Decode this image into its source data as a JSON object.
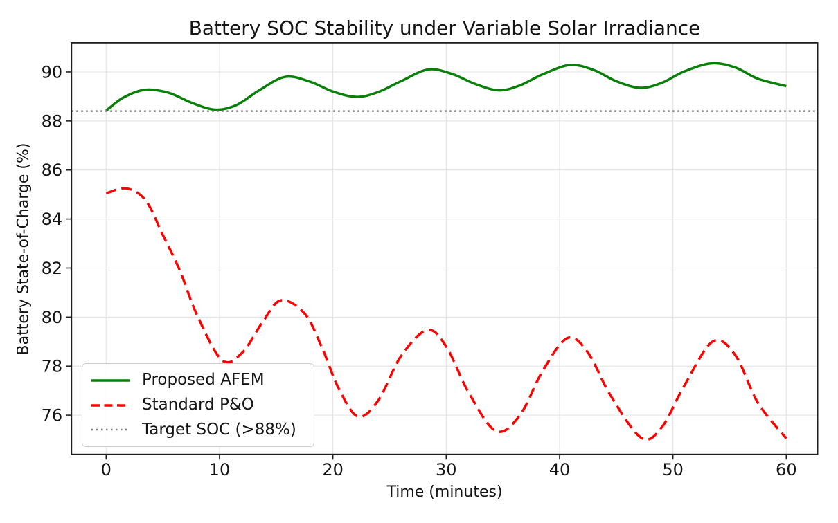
{
  "chart_data": {
    "type": "line",
    "title": "Battery SOC Stability under Variable Solar Irradiance",
    "xlabel": "Time (minutes)",
    "ylabel": "Battery State-of-Charge (%)",
    "xlim": [
      -3.06,
      62.76
    ],
    "ylim": [
      74.4,
      91.19
    ],
    "x_ticks": [
      0,
      10,
      20,
      30,
      40,
      50,
      60
    ],
    "y_ticks": [
      76,
      78,
      80,
      82,
      84,
      86,
      88,
      90
    ],
    "grid": true,
    "grid_color": "#e6e6e6",
    "spine_color": "#1f1f1f",
    "text_color": "#141414",
    "legend_position": "lower left",
    "target_value": 88.4,
    "series": [
      {
        "name": "Proposed AFEM",
        "color": "#088008",
        "style": "solid",
        "width": 3.5,
        "x": [
          0,
          1.5,
          3.4,
          5.5,
          7.5,
          9.6,
          11.5,
          13.5,
          15.8,
          18,
          20,
          22.1,
          24,
          26,
          28.4,
          30.5,
          32.5,
          34.6,
          36.5,
          38.5,
          40.9,
          43,
          45,
          47.1,
          49,
          51,
          53.4,
          55.5,
          57.5,
          60
        ],
        "y": [
          88.42,
          88.95,
          89.27,
          89.15,
          88.75,
          88.46,
          88.65,
          89.25,
          89.8,
          89.6,
          89.2,
          88.98,
          89.18,
          89.62,
          90.1,
          89.92,
          89.52,
          89.25,
          89.45,
          89.9,
          90.28,
          90.08,
          89.62,
          89.35,
          89.55,
          90.02,
          90.35,
          90.18,
          89.72,
          89.42
        ]
      },
      {
        "name": "Standard P&O",
        "color": "#ff0000",
        "style": "dashed",
        "width": 3.5,
        "x": [
          0,
          1.8,
          3.5,
          5,
          6.5,
          8,
          10.2,
          12,
          13.8,
          15.4,
          17.5,
          19,
          20.5,
          22.2,
          24,
          26,
          28.3,
          30,
          32,
          34.4,
          36.5,
          38.5,
          40.7,
          42.5,
          44.5,
          47.2,
          49,
          51,
          53.5,
          55.5,
          57.5,
          60
        ],
        "y": [
          85.05,
          85.25,
          84.75,
          83.35,
          81.9,
          80.1,
          78.25,
          78.55,
          79.8,
          80.68,
          80.15,
          78.8,
          77.1,
          75.95,
          76.6,
          78.4,
          79.47,
          78.8,
          76.9,
          75.35,
          76.0,
          77.8,
          79.15,
          78.55,
          76.8,
          75.08,
          75.5,
          77.2,
          79.0,
          78.45,
          76.5,
          75.05
        ]
      },
      {
        "name": "Target SOC (>88%)",
        "color": "#7f7f7f",
        "style": "dotted",
        "width": 2.5,
        "x": [
          -3.06,
          62.76
        ],
        "y": [
          88.4,
          88.4
        ]
      }
    ]
  }
}
